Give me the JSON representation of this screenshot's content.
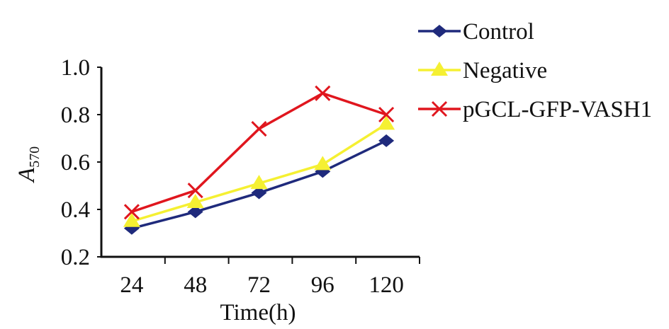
{
  "chart_data": {
    "type": "line",
    "title": "",
    "xlabel": "Time(h)",
    "ylabel": "A",
    "ylabel_subscript": "570",
    "categories": [
      "24",
      "48",
      "72",
      "96",
      "120"
    ],
    "ylim": [
      0.2,
      1.0
    ],
    "yticks": [
      "0.2",
      "0.4",
      "0.6",
      "0.8",
      "1.0"
    ],
    "grid": false,
    "legend_position": "top-right",
    "series": [
      {
        "name": "Control",
        "color": "#1f2a7c",
        "marker": "diamond",
        "values": [
          0.32,
          0.39,
          0.47,
          0.56,
          0.69
        ]
      },
      {
        "name": "Negative",
        "color": "#f5f032",
        "marker": "triangle",
        "values": [
          0.35,
          0.43,
          0.51,
          0.59,
          0.76
        ]
      },
      {
        "name": "pGCL-GFP-VASH1",
        "color": "#e0161e",
        "marker": "x",
        "values": [
          0.39,
          0.48,
          0.74,
          0.89,
          0.8
        ]
      }
    ]
  }
}
